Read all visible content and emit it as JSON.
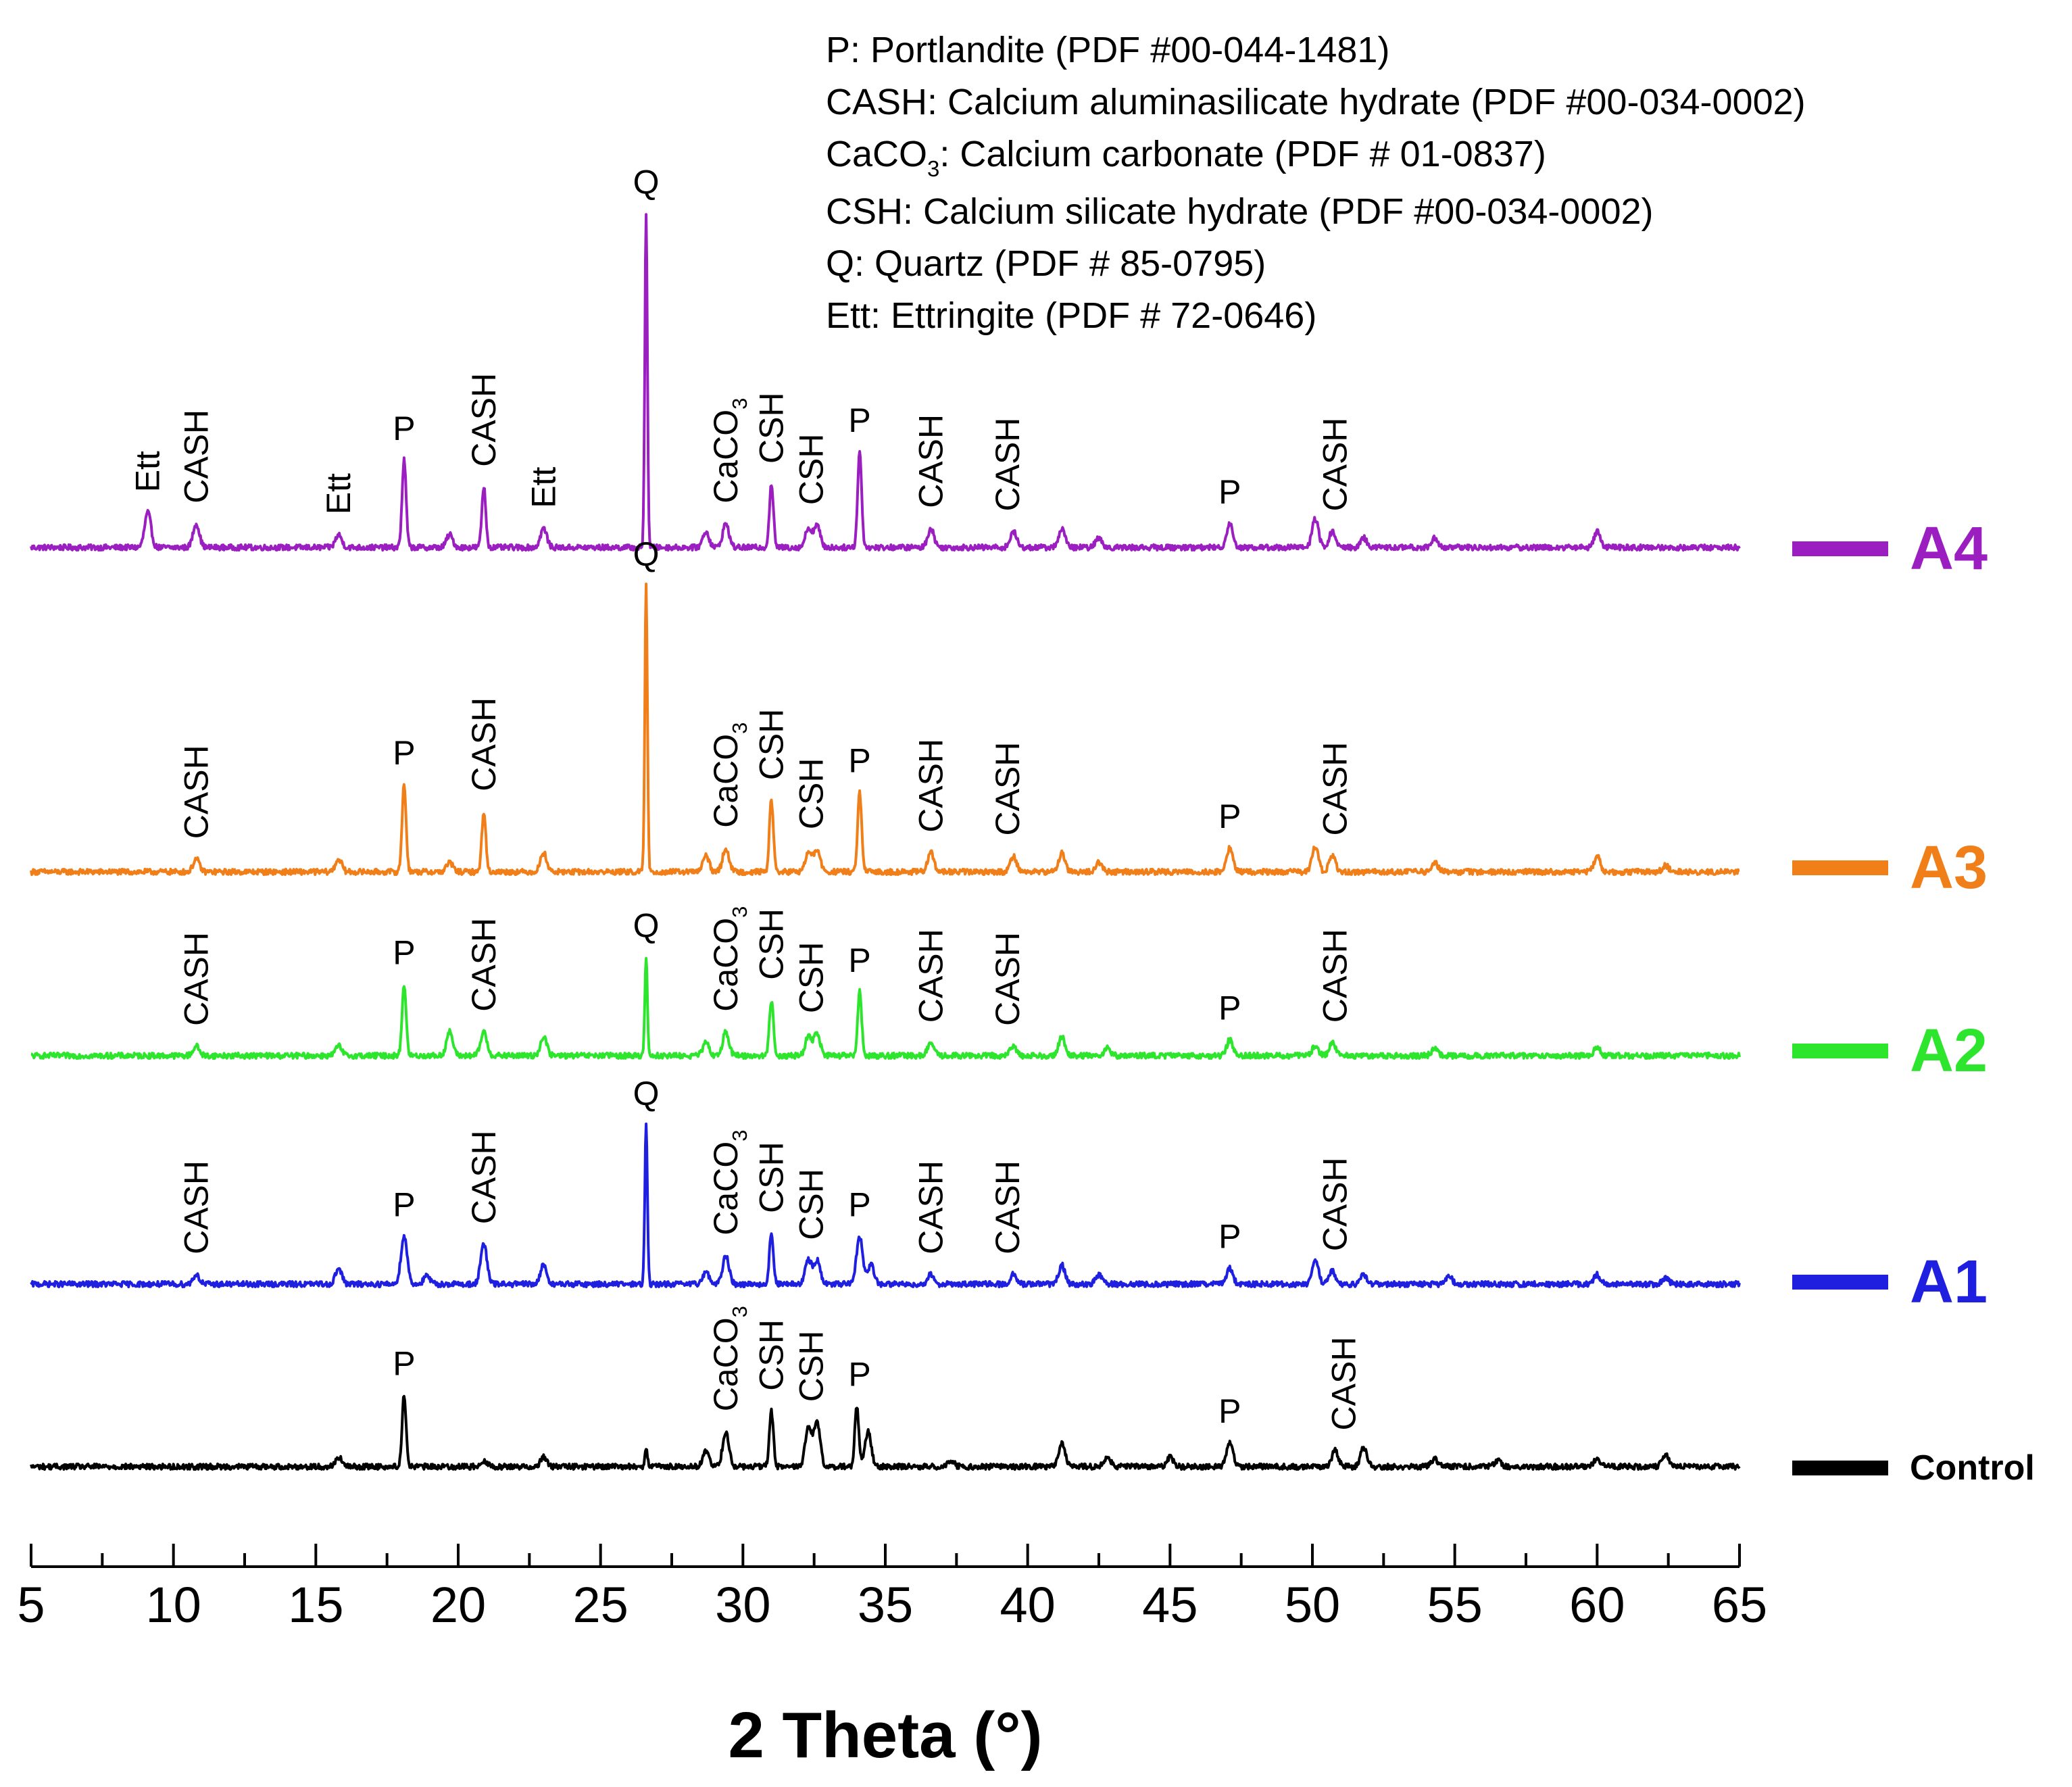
{
  "chart_data": {
    "type": "line",
    "xlabel": "2 Theta (°)",
    "xlim": [
      5,
      65
    ],
    "x_ticks": [
      {
        "value": 5,
        "label": "5"
      },
      {
        "value": 10,
        "label": "10"
      },
      {
        "value": 15,
        "label": "15"
      },
      {
        "value": 20,
        "label": "20"
      },
      {
        "value": 25,
        "label": "25"
      },
      {
        "value": 30,
        "label": "30"
      },
      {
        "value": 35,
        "label": "35"
      },
      {
        "value": 40,
        "label": "40"
      },
      {
        "value": 45,
        "label": "45"
      },
      {
        "value": 50,
        "label": "50"
      },
      {
        "value": 55,
        "label": "55"
      },
      {
        "value": 60,
        "label": "60"
      },
      {
        "value": 65,
        "label": "65"
      }
    ],
    "legend_notes": [
      [
        {
          "t": "P: Portlandite (PDF #00-044-1481)"
        }
      ],
      [
        {
          "t": "CASH: Calcium aluminasilicate hydrate (PDF #00-034-0002)"
        }
      ],
      [
        {
          "t": "CaCO"
        },
        {
          "t": "3",
          "sub": true
        },
        {
          "t": ": Calcium carbonate (PDF # 01-0837)"
        }
      ],
      [
        {
          "t": "CSH: Calcium silicate hydrate (PDF #00-034-0002)"
        }
      ],
      [
        {
          "t": "Q: Quartz (PDF # 85-0795)"
        }
      ],
      [
        {
          "t": "Ett: Ettringite (PDF # 72-0646)"
        }
      ]
    ],
    "series": [
      {
        "name": "A4",
        "color": "#9B1FC0",
        "peaks": [
          [
            9.1,
            0.22
          ],
          [
            10.8,
            0.15
          ],
          [
            15.8,
            0.08
          ],
          [
            18.1,
            0.55
          ],
          [
            19.7,
            0.08
          ],
          [
            20.9,
            0.38
          ],
          [
            23.0,
            0.12
          ],
          [
            26.6,
            2.1
          ],
          [
            28.7,
            0.1
          ],
          [
            29.4,
            0.15
          ],
          [
            31.0,
            0.4
          ],
          [
            32.3,
            0.12
          ],
          [
            32.6,
            0.14
          ],
          [
            34.1,
            0.6
          ],
          [
            36.6,
            0.12
          ],
          [
            39.5,
            0.1
          ],
          [
            41.2,
            0.12
          ],
          [
            42.5,
            0.06
          ],
          [
            47.1,
            0.15
          ],
          [
            50.1,
            0.18
          ],
          [
            50.7,
            0.1
          ],
          [
            51.8,
            0.06
          ],
          [
            54.3,
            0.06
          ],
          [
            60.0,
            0.1
          ]
        ],
        "peak_labels": [
          {
            "x": 9.1,
            "text": [
              {
                "t": "Ett"
              }
            ],
            "rot": true
          },
          {
            "x": 10.8,
            "text": [
              {
                "t": "CASH"
              }
            ],
            "rot": true
          },
          {
            "x": 15.8,
            "text": [
              {
                "t": "Ett"
              }
            ],
            "rot": true
          },
          {
            "x": 18.1,
            "text": [
              {
                "t": "P"
              }
            ],
            "rot": false
          },
          {
            "x": 20.9,
            "text": [
              {
                "t": "CASH"
              }
            ],
            "rot": true
          },
          {
            "x": 23.0,
            "text": [
              {
                "t": "Ett"
              }
            ],
            "rot": true
          },
          {
            "x": 26.6,
            "text": [
              {
                "t": "Q"
              }
            ],
            "rot": false
          },
          {
            "x": 29.4,
            "text": [
              {
                "t": "CaCO"
              },
              {
                "t": "3",
                "sub": true
              }
            ],
            "rot": true
          },
          {
            "x": 31.0,
            "text": [
              {
                "t": "CSH"
              }
            ],
            "rot": true
          },
          {
            "x": 32.4,
            "text": [
              {
                "t": "CSH"
              }
            ],
            "rot": true
          },
          {
            "x": 34.1,
            "text": [
              {
                "t": "P"
              }
            ],
            "rot": false
          },
          {
            "x": 36.6,
            "text": [
              {
                "t": "CASH"
              }
            ],
            "rot": true
          },
          {
            "x": 39.3,
            "text": [
              {
                "t": "CASH"
              }
            ],
            "rot": true
          },
          {
            "x": 47.1,
            "text": [
              {
                "t": "P"
              }
            ],
            "rot": false
          },
          {
            "x": 50.8,
            "text": [
              {
                "t": "CASH"
              }
            ],
            "rot": true
          }
        ]
      },
      {
        "name": "A3",
        "color": "#F07F1A",
        "peaks": [
          [
            10.8,
            0.08
          ],
          [
            15.8,
            0.08
          ],
          [
            18.1,
            0.55
          ],
          [
            19.7,
            0.06
          ],
          [
            20.9,
            0.38
          ],
          [
            23.0,
            0.12
          ],
          [
            26.6,
            1.8
          ],
          [
            28.7,
            0.1
          ],
          [
            29.4,
            0.15
          ],
          [
            31.0,
            0.45
          ],
          [
            32.3,
            0.12
          ],
          [
            32.6,
            0.14
          ],
          [
            34.1,
            0.5
          ],
          [
            36.6,
            0.12
          ],
          [
            39.5,
            0.1
          ],
          [
            41.2,
            0.12
          ],
          [
            42.5,
            0.06
          ],
          [
            47.1,
            0.15
          ],
          [
            50.1,
            0.16
          ],
          [
            50.7,
            0.1
          ],
          [
            54.3,
            0.06
          ],
          [
            60.0,
            0.1
          ],
          [
            62.4,
            0.04
          ]
        ],
        "peak_labels": [
          {
            "x": 10.8,
            "text": [
              {
                "t": "CASH"
              }
            ],
            "rot": true
          },
          {
            "x": 18.1,
            "text": [
              {
                "t": "P"
              }
            ],
            "rot": false
          },
          {
            "x": 20.9,
            "text": [
              {
                "t": "CASH"
              }
            ],
            "rot": true
          },
          {
            "x": 26.6,
            "text": [
              {
                "t": "Q"
              }
            ],
            "rot": false
          },
          {
            "x": 29.4,
            "text": [
              {
                "t": "CaCO"
              },
              {
                "t": "3",
                "sub": true
              }
            ],
            "rot": true
          },
          {
            "x": 31.0,
            "text": [
              {
                "t": "CSH"
              }
            ],
            "rot": true
          },
          {
            "x": 32.4,
            "text": [
              {
                "t": "CSH"
              }
            ],
            "rot": true
          },
          {
            "x": 34.1,
            "text": [
              {
                "t": "P"
              }
            ],
            "rot": false
          },
          {
            "x": 36.6,
            "text": [
              {
                "t": "CASH"
              }
            ],
            "rot": true
          },
          {
            "x": 39.3,
            "text": [
              {
                "t": "CASH"
              }
            ],
            "rot": true
          },
          {
            "x": 47.1,
            "text": [
              {
                "t": "P"
              }
            ],
            "rot": false
          },
          {
            "x": 50.8,
            "text": [
              {
                "t": "CASH"
              }
            ],
            "rot": true
          }
        ]
      },
      {
        "name": "A2",
        "color": "#2EE52E",
        "peaks": [
          [
            10.8,
            0.06
          ],
          [
            15.8,
            0.06
          ],
          [
            18.1,
            0.45
          ],
          [
            19.7,
            0.15
          ],
          [
            20.9,
            0.15
          ],
          [
            23.0,
            0.12
          ],
          [
            26.6,
            0.62
          ],
          [
            28.7,
            0.08
          ],
          [
            29.4,
            0.15
          ],
          [
            31.0,
            0.35
          ],
          [
            32.3,
            0.12
          ],
          [
            32.6,
            0.14
          ],
          [
            34.1,
            0.4
          ],
          [
            36.6,
            0.08
          ],
          [
            39.5,
            0.06
          ],
          [
            41.2,
            0.12
          ],
          [
            42.8,
            0.05
          ],
          [
            47.1,
            0.1
          ],
          [
            50.1,
            0.06
          ],
          [
            50.7,
            0.08
          ],
          [
            54.3,
            0.05
          ],
          [
            60.0,
            0.05
          ]
        ],
        "peak_labels": [
          {
            "x": 10.8,
            "text": [
              {
                "t": "CASH"
              }
            ],
            "rot": true
          },
          {
            "x": 18.1,
            "text": [
              {
                "t": "P"
              }
            ],
            "rot": false
          },
          {
            "x": 20.9,
            "text": [
              {
                "t": "CASH"
              }
            ],
            "rot": true
          },
          {
            "x": 26.6,
            "text": [
              {
                "t": "Q"
              }
            ],
            "rot": false
          },
          {
            "x": 29.4,
            "text": [
              {
                "t": "CaCO"
              },
              {
                "t": "3",
                "sub": true
              }
            ],
            "rot": true
          },
          {
            "x": 31.0,
            "text": [
              {
                "t": "CSH"
              }
            ],
            "rot": true
          },
          {
            "x": 32.4,
            "text": [
              {
                "t": "CSH"
              }
            ],
            "rot": true
          },
          {
            "x": 34.1,
            "text": [
              {
                "t": "P"
              }
            ],
            "rot": false
          },
          {
            "x": 36.6,
            "text": [
              {
                "t": "CASH"
              }
            ],
            "rot": true
          },
          {
            "x": 39.3,
            "text": [
              {
                "t": "CASH"
              }
            ],
            "rot": true
          },
          {
            "x": 47.1,
            "text": [
              {
                "t": "P"
              }
            ],
            "rot": false
          },
          {
            "x": 50.8,
            "text": [
              {
                "t": "CASH"
              }
            ],
            "rot": true
          }
        ]
      },
      {
        "name": "A1",
        "color": "#1F1FE0",
        "peaks": [
          [
            10.8,
            0.06
          ],
          [
            15.8,
            0.1
          ],
          [
            18.1,
            0.3
          ],
          [
            18.9,
            0.05
          ],
          [
            20.9,
            0.25
          ],
          [
            23.0,
            0.12
          ],
          [
            26.6,
            1.0
          ],
          [
            28.7,
            0.08
          ],
          [
            29.4,
            0.18
          ],
          [
            31.0,
            0.32
          ],
          [
            32.3,
            0.15
          ],
          [
            32.6,
            0.15
          ],
          [
            34.1,
            0.3
          ],
          [
            34.5,
            0.12
          ],
          [
            36.6,
            0.06
          ],
          [
            39.5,
            0.06
          ],
          [
            41.2,
            0.12
          ],
          [
            42.5,
            0.06
          ],
          [
            47.1,
            0.1
          ],
          [
            50.1,
            0.15
          ],
          [
            50.7,
            0.08
          ],
          [
            51.8,
            0.06
          ],
          [
            54.8,
            0.05
          ],
          [
            60.0,
            0.06
          ],
          [
            62.4,
            0.04
          ]
        ],
        "peak_labels": [
          {
            "x": 10.8,
            "text": [
              {
                "t": "CASH"
              }
            ],
            "rot": true
          },
          {
            "x": 18.1,
            "text": [
              {
                "t": "P"
              }
            ],
            "rot": false
          },
          {
            "x": 20.9,
            "text": [
              {
                "t": "CASH"
              }
            ],
            "rot": true
          },
          {
            "x": 26.6,
            "text": [
              {
                "t": "Q"
              }
            ],
            "rot": false
          },
          {
            "x": 29.4,
            "text": [
              {
                "t": "CaCO"
              },
              {
                "t": "3",
                "sub": true
              }
            ],
            "rot": true
          },
          {
            "x": 31.0,
            "text": [
              {
                "t": "CSH"
              }
            ],
            "rot": true
          },
          {
            "x": 32.4,
            "text": [
              {
                "t": "CSH"
              }
            ],
            "rot": true
          },
          {
            "x": 34.1,
            "text": [
              {
                "t": "P"
              }
            ],
            "rot": false
          },
          {
            "x": 36.6,
            "text": [
              {
                "t": "CASH"
              }
            ],
            "rot": true
          },
          {
            "x": 39.3,
            "text": [
              {
                "t": "CASH"
              }
            ],
            "rot": true
          },
          {
            "x": 47.1,
            "text": [
              {
                "t": "P"
              }
            ],
            "rot": false
          },
          {
            "x": 50.8,
            "text": [
              {
                "t": "CASH"
              }
            ],
            "rot": true
          }
        ]
      },
      {
        "name": "Control",
        "color": "#000000",
        "peaks": [
          [
            15.8,
            0.06
          ],
          [
            18.1,
            0.45
          ],
          [
            20.9,
            0.04
          ],
          [
            23.0,
            0.06
          ],
          [
            26.6,
            0.12
          ],
          [
            28.7,
            0.1
          ],
          [
            29.4,
            0.22
          ],
          [
            31.0,
            0.35
          ],
          [
            32.3,
            0.25
          ],
          [
            32.6,
            0.28
          ],
          [
            34.0,
            0.38
          ],
          [
            34.4,
            0.22
          ],
          [
            37.3,
            0.04
          ],
          [
            41.2,
            0.15
          ],
          [
            42.8,
            0.06
          ],
          [
            45.0,
            0.06
          ],
          [
            47.1,
            0.15
          ],
          [
            50.8,
            0.1
          ],
          [
            51.8,
            0.12
          ],
          [
            54.3,
            0.05
          ],
          [
            56.5,
            0.04
          ],
          [
            60.0,
            0.05
          ],
          [
            62.4,
            0.08
          ]
        ],
        "peak_labels": [
          {
            "x": 18.1,
            "text": [
              {
                "t": "P"
              }
            ],
            "rot": false
          },
          {
            "x": 29.4,
            "text": [
              {
                "t": "CaCO"
              },
              {
                "t": "3",
                "sub": true
              }
            ],
            "rot": true
          },
          {
            "x": 31.0,
            "text": [
              {
                "t": "CSH"
              }
            ],
            "rot": true
          },
          {
            "x": 32.4,
            "text": [
              {
                "t": "CSH"
              }
            ],
            "rot": true
          },
          {
            "x": 34.1,
            "text": [
              {
                "t": "P"
              }
            ],
            "rot": false
          },
          {
            "x": 47.1,
            "text": [
              {
                "t": "P"
              }
            ],
            "rot": false
          },
          {
            "x": 51.1,
            "text": [
              {
                "t": "CASH"
              }
            ],
            "rot": true
          }
        ]
      }
    ]
  }
}
